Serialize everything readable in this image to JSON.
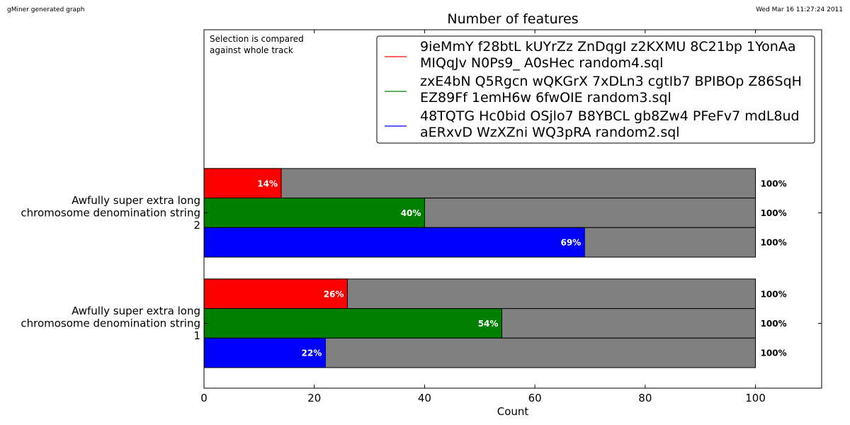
{
  "header": {
    "left_text": "gMiner generated graph",
    "right_text": "Wed Mar 16 11:27:24 2011"
  },
  "note": [
    "Selection is compared",
    "against whole track"
  ],
  "colors": {
    "background": "#808080",
    "series": [
      "#ff0000",
      "#008000",
      "#0000ff"
    ]
  },
  "chart_data": {
    "type": "bar",
    "orientation": "horizontal",
    "title": "Number of features",
    "xlabel": "Count",
    "ylabel": "",
    "xlim": [
      0,
      112
    ],
    "xticks": [
      0,
      20,
      40,
      60,
      80,
      100
    ],
    "categories": [
      {
        "lines": [
          "Awfully super extra long",
          "chromosome denomination string",
          "1"
        ]
      },
      {
        "lines": [
          "Awfully super extra long",
          "chromosome denomination string",
          "2"
        ]
      }
    ],
    "series": [
      {
        "name_lines": [
          "9ieMmY f28btL kUYrZz ZnDqgI z2KXMU 8C21bp 1YonAa",
          "MIQqJv N0Ps9_ A0sHec random4.sql"
        ],
        "color": "#ff0000",
        "values": [
          26,
          14
        ],
        "value_labels": [
          "26%",
          "14%"
        ],
        "total_labels": [
          "100%",
          "100%"
        ]
      },
      {
        "name_lines": [
          "zxE4bN Q5Rgcn wQKGrX 7xDLn3 cgtIb7 BPIBOp Z86SqH",
          "EZ89Ff 1emH6w 6fwOIE random3.sql"
        ],
        "color": "#008000",
        "values": [
          54,
          40
        ],
        "value_labels": [
          "54%",
          "40%"
        ],
        "total_labels": [
          "100%",
          "100%"
        ]
      },
      {
        "name_lines": [
          "48TQTG Hc0bid OSjlo7 B8YBCL gb8Zw4 PFeFv7 mdL8ud",
          "aERxvD WzXZni WQ3pRA random2.sql"
        ],
        "color": "#0000ff",
        "values": [
          22,
          69
        ],
        "value_labels": [
          "22%",
          "69%"
        ],
        "total_labels": [
          "100%",
          "100%"
        ]
      }
    ],
    "background_values": [
      100,
      100
    ],
    "grid": false,
    "legend_position": "top-right"
  }
}
